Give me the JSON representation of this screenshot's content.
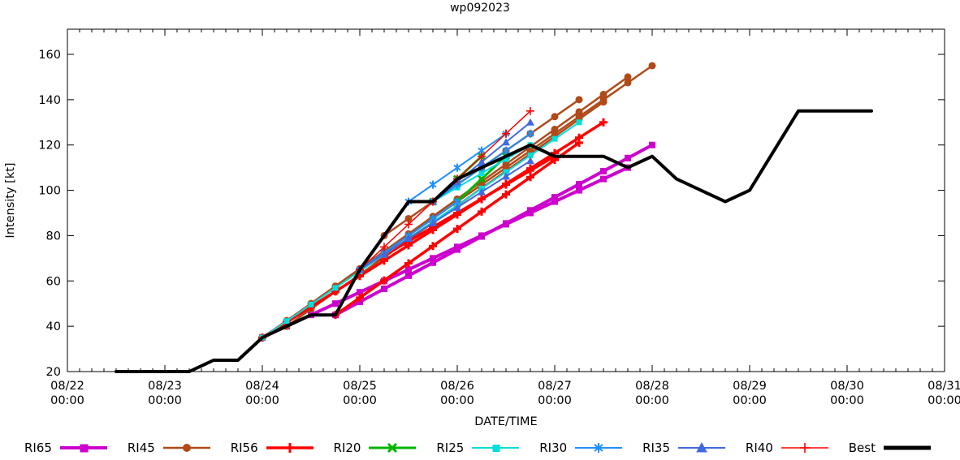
{
  "title": "wp092023",
  "chart_data": {
    "type": "line",
    "title": "wp092023",
    "xlabel": "DATE/TIME",
    "ylabel": "Intensity [kt]",
    "x_axis": {
      "start": "08/22 00:00",
      "end": "08/31 00:00",
      "major_tick_hours": 24,
      "minor_tick_hours": 3,
      "tick_labels": [
        "08/22 00:00",
        "08/23 00:00",
        "08/24 00:00",
        "08/25 00:00",
        "08/26 00:00",
        "08/27 00:00",
        "08/28 00:00",
        "08/29 00:00",
        "08/30 00:00",
        "08/31 00:00"
      ]
    },
    "y_axis": {
      "min": 20,
      "max": 171,
      "major_ticks": [
        20,
        40,
        60,
        80,
        100,
        120,
        140,
        160
      ]
    },
    "grid": false,
    "legend_position": "bottom",
    "marker_interval_hours": 6,
    "series": [
      {
        "name": "RI65",
        "color": "#cd00cd",
        "marker": "square",
        "line_width": 4,
        "lines": [
          [
            [
              "08/24 00:00",
              35
            ],
            [
              "08/27 18:00",
              110
            ]
          ],
          [
            [
              "08/24 18:00",
              45
            ],
            [
              "08/28 00:00",
              120
            ]
          ]
        ]
      },
      {
        "name": "RI45",
        "color": "#b04a19",
        "marker": "circle",
        "line_width": 2.5,
        "lines": [
          [
            [
              "08/24 00:00",
              35
            ],
            [
              "08/28 00:00",
              155
            ]
          ],
          [
            [
              "08/24 06:00",
              40
            ],
            [
              "08/27 12:00",
              139
            ]
          ],
          [
            [
              "08/24 12:00",
              50
            ],
            [
              "08/27 18:00",
              150
            ]
          ],
          [
            [
              "08/25 06:00",
              80
            ],
            [
              "08/27 06:00",
              140
            ]
          ]
        ]
      },
      {
        "name": "RI56",
        "color": "#ff0000",
        "marker": "plus",
        "line_width": 3.5,
        "lines": [
          [
            [
              "08/24 00:00",
              35
            ],
            [
              "08/27 12:00",
              130
            ]
          ],
          [
            [
              "08/24 18:00",
              45
            ],
            [
              "08/27 06:00",
              121
            ]
          ],
          [
            [
              "08/25 00:00",
              65
            ],
            [
              "08/27 00:00",
              115
            ]
          ]
        ]
      },
      {
        "name": "RI20",
        "color": "#00b400",
        "marker": "x",
        "line_width": 3,
        "lines": [
          [
            [
              "08/25 18:00",
              95
            ],
            [
              "08/26 06:00",
              115
            ]
          ],
          [
            [
              "08/26 00:00",
              95
            ],
            [
              "08/26 12:00",
              115
            ]
          ]
        ]
      },
      {
        "name": "RI25",
        "color": "#00dede",
        "marker": "square-small",
        "line_width": 2,
        "lines": [
          [
            [
              "08/24 00:00",
              35
            ],
            [
              "08/27 06:00",
              130
            ]
          ],
          [
            [
              "08/25 18:00",
              95
            ],
            [
              "08/26 18:00",
              120
            ]
          ]
        ]
      },
      {
        "name": "RI30",
        "color": "#1e90ff",
        "marker": "asterisk",
        "line_width": 2,
        "lines": [
          [
            [
              "08/25 18:00",
              95
            ],
            [
              "08/26 18:00",
              125
            ]
          ],
          [
            [
              "08/25 12:00",
              95
            ],
            [
              "08/26 12:00",
              125
            ]
          ],
          [
            [
              "08/25 00:00",
              65
            ],
            [
              "08/26 00:00",
              95
            ]
          ]
        ]
      },
      {
        "name": "RI35",
        "color": "#4169e1",
        "marker": "triangle",
        "line_width": 2,
        "lines": [
          [
            [
              "08/25 18:00",
              95
            ],
            [
              "08/26 18:00",
              130
            ]
          ],
          [
            [
              "08/25 00:00",
              65
            ],
            [
              "08/26 18:00",
              113
            ]
          ]
        ]
      },
      {
        "name": "RI40",
        "color": "#ff0000",
        "marker": "plus-thin",
        "line_width": 1.5,
        "lines": [
          [
            [
              "08/25 18:00",
              95
            ],
            [
              "08/26 18:00",
              135
            ]
          ],
          [
            [
              "08/25 00:00",
              65
            ],
            [
              "08/26 00:00",
              105
            ]
          ]
        ]
      },
      {
        "name": "Best",
        "color": "#000000",
        "marker": "none",
        "line_width": 4,
        "lines": [
          [
            [
              "08/22 12:00",
              20
            ],
            [
              "08/23 06:00",
              20
            ],
            [
              "08/23 12:00",
              25
            ],
            [
              "08/23 18:00",
              25
            ],
            [
              "08/24 00:00",
              35
            ],
            [
              "08/24 06:00",
              40
            ],
            [
              "08/24 12:00",
              45
            ],
            [
              "08/24 18:00",
              45
            ],
            [
              "08/25 00:00",
              65
            ],
            [
              "08/25 06:00",
              80
            ],
            [
              "08/25 12:00",
              95
            ],
            [
              "08/25 18:00",
              95
            ],
            [
              "08/26 00:00",
              105
            ],
            [
              "08/26 06:00",
              110
            ],
            [
              "08/26 12:00",
              115
            ],
            [
              "08/26 18:00",
              120
            ],
            [
              "08/27 00:00",
              115
            ],
            [
              "08/27 12:00",
              115
            ],
            [
              "08/27 18:00",
              110
            ],
            [
              "08/28 00:00",
              115
            ],
            [
              "08/28 06:00",
              105
            ],
            [
              "08/28 12:00",
              100
            ],
            [
              "08/28 18:00",
              95
            ],
            [
              "08/29 00:00",
              100
            ],
            [
              "08/29 12:00",
              135
            ],
            [
              "08/30 06:00",
              135
            ]
          ]
        ]
      }
    ]
  }
}
